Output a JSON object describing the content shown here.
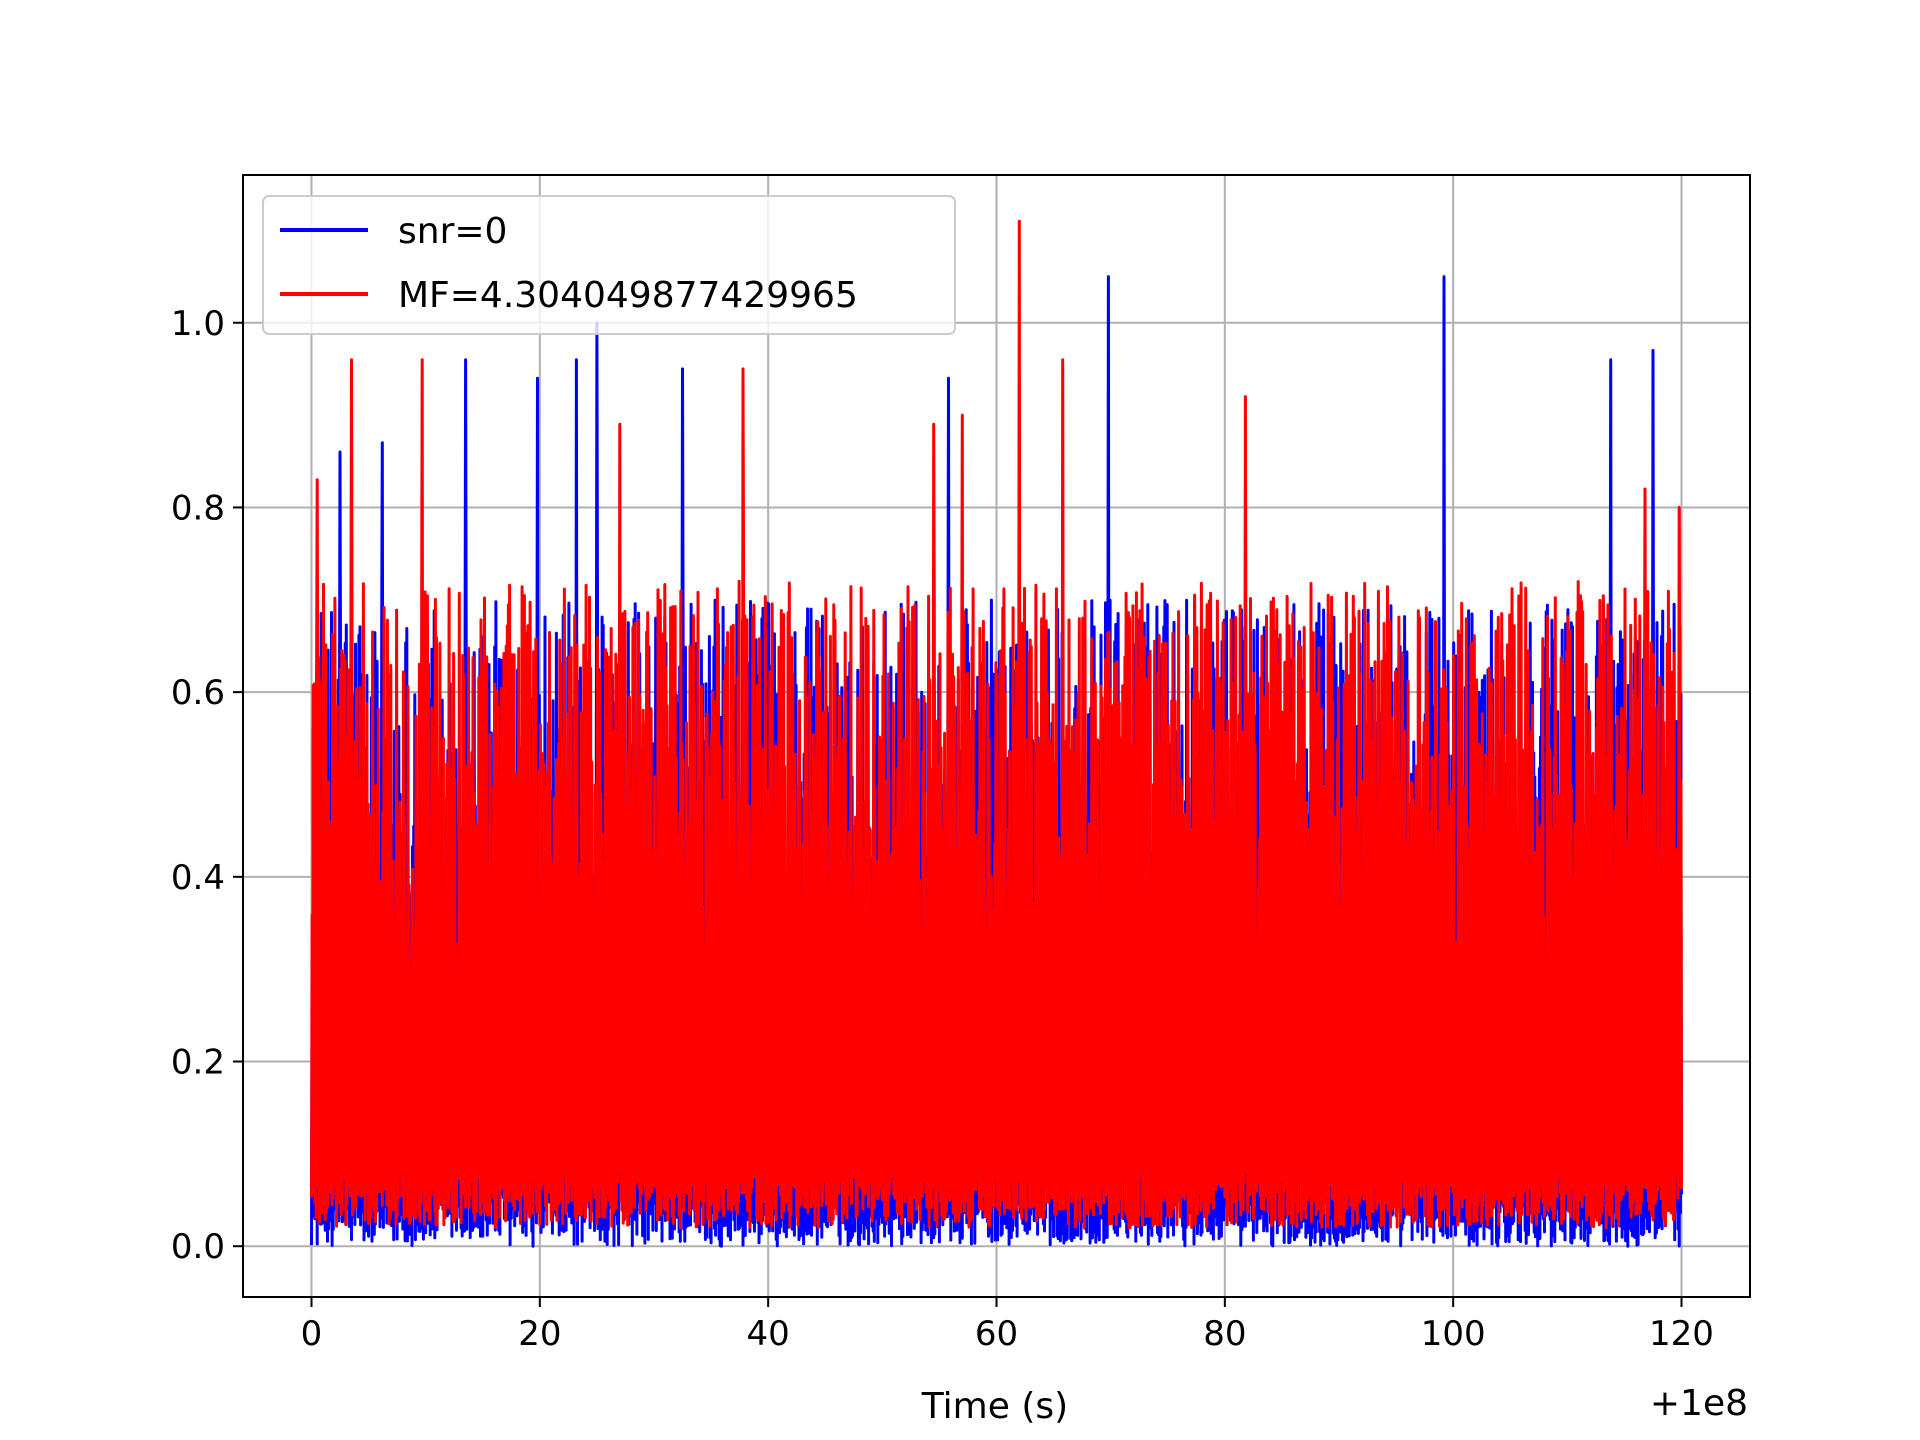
{
  "chart_data": {
    "type": "line",
    "title": "",
    "xlabel": "Time (s)",
    "ylabel": "",
    "x_offset_label": "+1e8",
    "xlim": [
      -6,
      126
    ],
    "ylim": [
      -0.055,
      1.16
    ],
    "x_ticks": [
      0,
      20,
      40,
      60,
      80,
      100,
      120
    ],
    "x_tick_labels": [
      "0",
      "20",
      "40",
      "60",
      "80",
      "100",
      "120"
    ],
    "y_ticks": [
      0.0,
      0.2,
      0.4,
      0.6,
      0.8,
      1.0
    ],
    "y_tick_labels": [
      "0.0",
      "0.2",
      "0.4",
      "0.6",
      "0.8",
      "1.0"
    ],
    "grid": true,
    "legend_position": "top-left",
    "x_range": [
      0,
      120
    ],
    "series": [
      {
        "name": "snr=0",
        "color": "#0000ff",
        "baseline_min": 0.0,
        "typical_max": 0.7,
        "peaks": [
          {
            "x": 2.5,
            "y": 0.86
          },
          {
            "x": 6.2,
            "y": 0.87
          },
          {
            "x": 13.5,
            "y": 0.96
          },
          {
            "x": 19.8,
            "y": 0.94
          },
          {
            "x": 23.2,
            "y": 0.96
          },
          {
            "x": 25.0,
            "y": 1.0
          },
          {
            "x": 32.5,
            "y": 0.95
          },
          {
            "x": 55.8,
            "y": 0.94
          },
          {
            "x": 69.8,
            "y": 1.05
          },
          {
            "x": 99.2,
            "y": 1.05
          },
          {
            "x": 113.8,
            "y": 0.96
          },
          {
            "x": 117.5,
            "y": 0.97
          }
        ]
      },
      {
        "name": "MF=4.304049877429965",
        "color": "#ff0000",
        "baseline_min": 0.02,
        "typical_max": 0.72,
        "peaks": [
          {
            "x": 0.5,
            "y": 0.83
          },
          {
            "x": 3.5,
            "y": 0.96
          },
          {
            "x": 9.7,
            "y": 0.96
          },
          {
            "x": 27.0,
            "y": 0.89
          },
          {
            "x": 37.8,
            "y": 0.95
          },
          {
            "x": 54.5,
            "y": 0.89
          },
          {
            "x": 57.0,
            "y": 0.9
          },
          {
            "x": 62.0,
            "y": 1.11
          },
          {
            "x": 65.8,
            "y": 0.96
          },
          {
            "x": 81.8,
            "y": 0.92
          },
          {
            "x": 116.8,
            "y": 0.82
          },
          {
            "x": 119.8,
            "y": 0.8
          }
        ]
      }
    ]
  }
}
